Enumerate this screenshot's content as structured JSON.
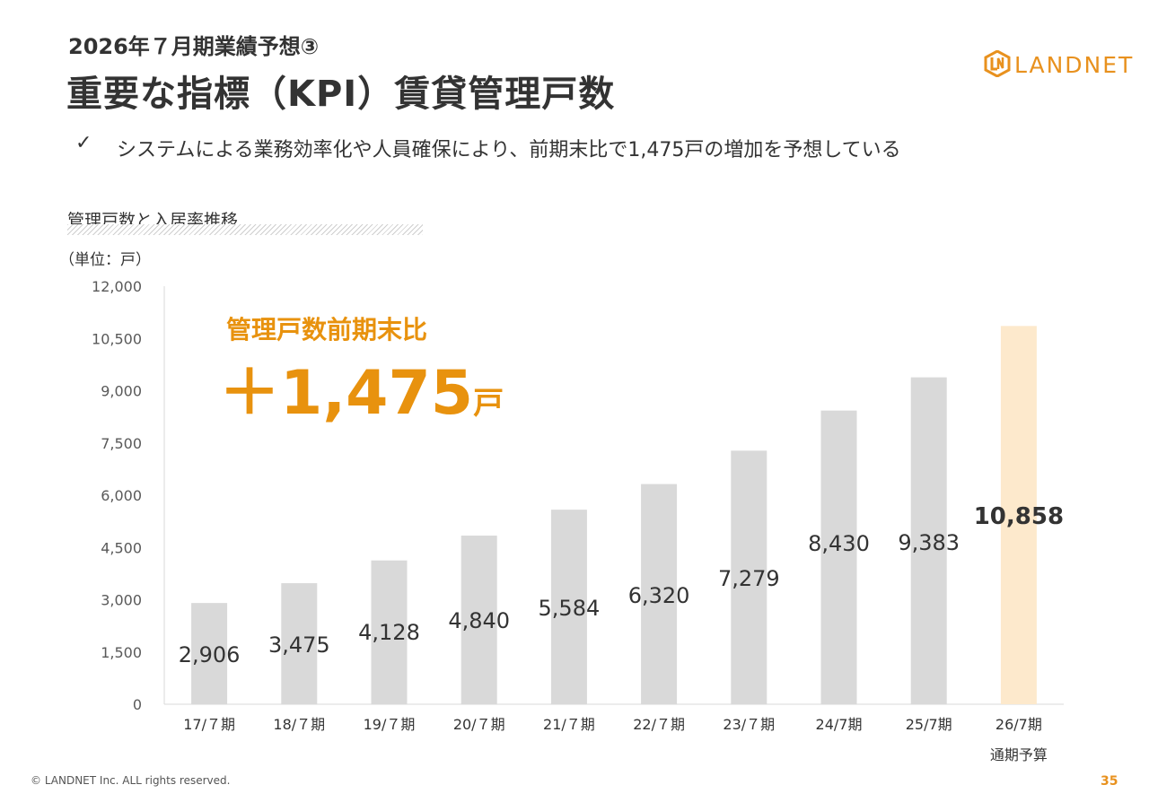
{
  "header": {
    "subtitle": "2026年７月期業績予想③",
    "title": "重要な指標（KPI）賃貸管理戸数",
    "logo_text": "LANDNET",
    "bullet_check": "✓",
    "bullet_text": "システムによる業務効率化や人員確保により、前期末比で1,475戸の増加を予想している"
  },
  "chart_section": {
    "heading": "管理戸数と入居率推移",
    "unit_label": "（単位：戸）",
    "callout_label": "管理戸数前期末比",
    "callout_value": "＋1,475",
    "callout_unit": "戸"
  },
  "chart_data": {
    "type": "bar",
    "categories": [
      "17/７期",
      "18/７期",
      "19/７期",
      "20/７期",
      "21/７期",
      "22/７期",
      "23/７期",
      "24/7期",
      "25/7期",
      "26/7期"
    ],
    "category_sublabels": [
      "",
      "",
      "",
      "",
      "",
      "",
      "",
      "",
      "",
      "通期予算"
    ],
    "values": [
      2906,
      3475,
      4128,
      4840,
      5584,
      6320,
      7279,
      8430,
      9383,
      10858
    ],
    "value_labels": [
      "2,906",
      "3,475",
      "4,128",
      "4,840",
      "5,584",
      "6,320",
      "7,279",
      "8,430",
      "9,383",
      "10,858"
    ],
    "yticks": [
      0,
      1500,
      3000,
      4500,
      6000,
      7500,
      9000,
      10500,
      12000
    ],
    "ytick_labels": [
      "0",
      "1,500",
      "3,000",
      "4,500",
      "6,000",
      "7,500",
      "9,000",
      "10,500",
      "12,000"
    ],
    "ylim": [
      0,
      12000
    ],
    "title": "",
    "xlabel": "",
    "ylabel": "",
    "colors": {
      "bar": "#D9D9D9",
      "highlight_bar": "#FDE9CC",
      "highlight_index": 9
    },
    "grid": false
  },
  "footer": {
    "copyright": "© LANDNET Inc. ALL rights reserved.",
    "page_number": "35"
  }
}
